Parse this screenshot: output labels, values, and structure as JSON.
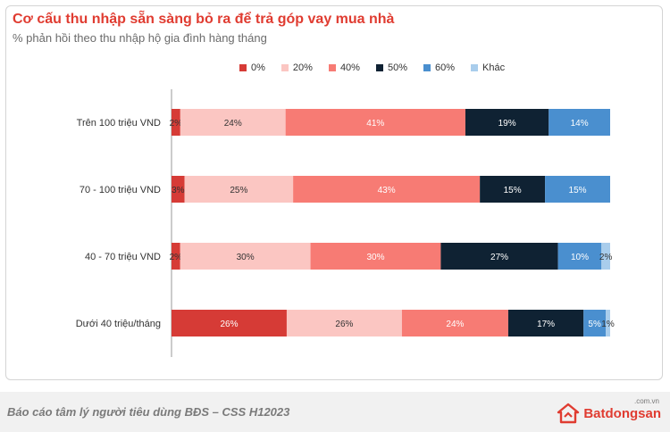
{
  "header": {
    "title": "Cơ cấu thu nhập sẵn sàng bỏ ra để trả góp vay mua nhà",
    "subtitle": "% phản hồi theo thu nhập hộ gia đình hàng tháng"
  },
  "footer": {
    "text": "Báo cáo tâm lý người tiêu dùng BĐS – CSS H12023",
    "brand_name": "Batdongsan",
    "brand_domain": ".com.vn",
    "brand_color": "#e03c31"
  },
  "chart_data": {
    "type": "bar",
    "orientation": "horizontal",
    "stacked": true,
    "title": "Cơ cấu thu nhập sẵn sàng bỏ ra để trả góp vay mua nhà",
    "subtitle": "% phản hồi theo thu nhập hộ gia đình hàng tháng",
    "categories": [
      "Trên 100 triệu VND",
      "70 - 100 triệu VND",
      "40 - 70 triệu VND",
      "Dưới 40 triệu/tháng"
    ],
    "series": [
      {
        "name": "0%",
        "color": "#d63b36",
        "values": [
          2,
          3,
          2,
          26
        ],
        "labels": [
          "2%",
          "3%",
          "2%",
          "26%"
        ]
      },
      {
        "name": "20%",
        "color": "#fbc6c2",
        "values": [
          24,
          25,
          30,
          26
        ],
        "labels": [
          "24%",
          "25%",
          "30%",
          "26%"
        ]
      },
      {
        "name": "40%",
        "color": "#f77b74",
        "values": [
          41,
          43,
          30,
          24
        ],
        "labels": [
          "41%",
          "43%",
          "30%",
          "24%"
        ]
      },
      {
        "name": "50%",
        "color": "#0f2233",
        "values": [
          19,
          15,
          27,
          17
        ],
        "labels": [
          "19%",
          "15%",
          "27%",
          "17%"
        ]
      },
      {
        "name": "60%",
        "color": "#4a8fcf",
        "values": [
          14,
          15,
          10,
          5
        ],
        "labels": [
          "14%",
          "15%",
          "10%",
          "5%"
        ]
      },
      {
        "name": "Khác",
        "color": "#a9cdec",
        "values": [
          0,
          0,
          2,
          1
        ],
        "labels": [
          "",
          "",
          "2%",
          "1%"
        ]
      }
    ],
    "legend_position": "top",
    "grid": false
  }
}
